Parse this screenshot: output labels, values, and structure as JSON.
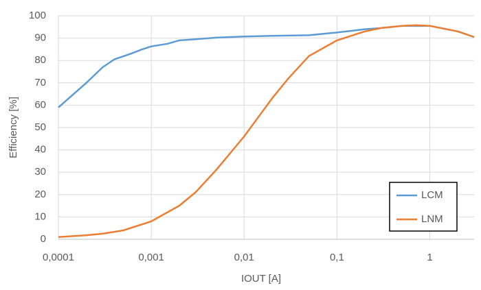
{
  "chart_data": {
    "type": "line",
    "x_label": "IOUT [A]",
    "y_label": "Efficiency [%]",
    "xscale": "log",
    "xlim": [
      0.0001,
      3
    ],
    "ylim": [
      0,
      100
    ],
    "xticks": [
      {
        "value": 0.0001,
        "label": "0,0001"
      },
      {
        "value": 0.001,
        "label": "0,001"
      },
      {
        "value": 0.01,
        "label": "0,01"
      },
      {
        "value": 0.1,
        "label": "0,1"
      },
      1
    ],
    "yticks": [
      0,
      10,
      20,
      30,
      40,
      50,
      60,
      70,
      80,
      90,
      100
    ],
    "grid": true,
    "legend": "lower right",
    "series": [
      {
        "name": "LCM",
        "color": "#5b9bd5",
        "x": [
          0.0001,
          0.0002,
          0.0003,
          0.0004,
          0.0006,
          0.0008,
          0.001,
          0.0015,
          0.002,
          0.003,
          0.005,
          0.01,
          0.02,
          0.05,
          0.1,
          0.2,
          0.3,
          0.5,
          1,
          2,
          3
        ],
        "values": [
          59,
          70,
          77,
          80.5,
          83,
          85,
          86.3,
          87.5,
          89,
          89.5,
          90.2,
          90.7,
          91,
          91.3,
          92.5,
          94,
          94.5,
          95.5,
          95.5,
          93,
          90.5
        ]
      },
      {
        "name": "LNM",
        "color": "#ed7d31",
        "x": [
          0.0001,
          0.0002,
          0.0003,
          0.0005,
          0.001,
          0.002,
          0.003,
          0.005,
          0.01,
          0.02,
          0.03,
          0.05,
          0.1,
          0.2,
          0.3,
          0.5,
          0.7,
          1,
          2,
          3
        ],
        "values": [
          1,
          1.8,
          2.5,
          4,
          8,
          15,
          21,
          31,
          46,
          63,
          72,
          82,
          89,
          93,
          94.5,
          95.5,
          95.8,
          95.5,
          93,
          90.5
        ]
      }
    ]
  }
}
